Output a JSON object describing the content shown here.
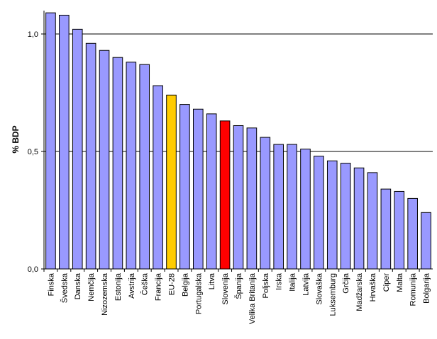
{
  "chart_data": {
    "type": "bar",
    "ylabel": "% BDP",
    "ylim": [
      0,
      1.0
    ],
    "yticks": [
      {
        "value": 0,
        "label": "0,0"
      },
      {
        "value": 0.5,
        "label": "0,5"
      },
      {
        "value": 1.0,
        "label": "1,0"
      }
    ],
    "grid": true,
    "legend": "none",
    "colors": {
      "default": "#9999ff",
      "eu": "#ffcc00",
      "slovenia": "#ff0000",
      "border": "#000000"
    },
    "categories": [
      "Finska",
      "Švedska",
      "Danska",
      "Nemčija",
      "Nizozemska",
      "Estonija",
      "Avstrija",
      "Češka",
      "Francija",
      "EU-28",
      "Belgija",
      "Portugalska",
      "Litva",
      "Slovenija",
      "Španija",
      "Velika Britanija",
      "Poljska",
      "Irska",
      "Italija",
      "Latvija",
      "Slovaška",
      "Luksemburg",
      "Grčija",
      "Madžarska",
      "Hrvaška",
      "Ciper",
      "Malta",
      "Romunija",
      "Bolgarija"
    ],
    "values": [
      1.09,
      1.08,
      1.02,
      0.96,
      0.93,
      0.9,
      0.88,
      0.87,
      0.78,
      0.74,
      0.7,
      0.68,
      0.66,
      0.63,
      0.61,
      0.6,
      0.56,
      0.53,
      0.53,
      0.51,
      0.48,
      0.46,
      0.45,
      0.43,
      0.41,
      0.34,
      0.33,
      0.3,
      0.24
    ],
    "highlight": {
      "EU-28": "eu",
      "Slovenija": "slovenia"
    }
  }
}
